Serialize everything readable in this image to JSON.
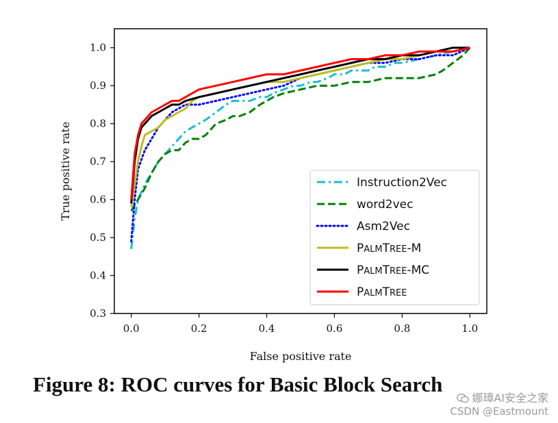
{
  "chart_data": {
    "type": "line",
    "title": "",
    "xlabel": "False positive rate",
    "ylabel": "True positive rate",
    "xlim": [
      -0.05,
      1.05
    ],
    "ylim": [
      0.3,
      1.05
    ],
    "xticks": [
      0.0,
      0.2,
      0.4,
      0.6,
      0.8,
      1.0
    ],
    "xtick_labels": [
      "0.0",
      "0.2",
      "0.4",
      "0.6",
      "0.8",
      "1.0"
    ],
    "yticks": [
      0.3,
      0.4,
      0.5,
      0.6,
      0.7,
      0.8,
      0.9,
      1.0
    ],
    "ytick_labels": [
      "0.3",
      "0.4",
      "0.5",
      "0.6",
      "0.7",
      "0.8",
      "0.9",
      "1.0"
    ],
    "grid": false,
    "legend_position": "bottom-right",
    "series": [
      {
        "name": "Instruction2Vec",
        "color": "#17becf",
        "style": "dashdot",
        "x": [
          0.0,
          0.01,
          0.02,
          0.04,
          0.06,
          0.08,
          0.1,
          0.12,
          0.14,
          0.16,
          0.18,
          0.2,
          0.22,
          0.25,
          0.28,
          0.3,
          0.32,
          0.35,
          0.38,
          0.4,
          0.42,
          0.45,
          0.48,
          0.5,
          0.53,
          0.55,
          0.58,
          0.6,
          0.63,
          0.65,
          0.68,
          0.7,
          0.72,
          0.75,
          0.78,
          0.8,
          0.85,
          0.9,
          0.95,
          1.0
        ],
        "y": [
          0.47,
          0.55,
          0.6,
          0.64,
          0.67,
          0.7,
          0.72,
          0.74,
          0.76,
          0.78,
          0.79,
          0.8,
          0.81,
          0.83,
          0.85,
          0.86,
          0.86,
          0.86,
          0.87,
          0.87,
          0.88,
          0.89,
          0.9,
          0.9,
          0.91,
          0.91,
          0.92,
          0.93,
          0.93,
          0.94,
          0.94,
          0.94,
          0.95,
          0.95,
          0.96,
          0.96,
          0.97,
          0.98,
          0.99,
          1.0
        ]
      },
      {
        "name": "word2vec",
        "color": "#008000",
        "style": "dashed",
        "x": [
          0.0,
          0.02,
          0.04,
          0.06,
          0.08,
          0.1,
          0.12,
          0.14,
          0.16,
          0.18,
          0.2,
          0.22,
          0.25,
          0.28,
          0.3,
          0.32,
          0.35,
          0.38,
          0.4,
          0.42,
          0.45,
          0.5,
          0.55,
          0.6,
          0.65,
          0.7,
          0.75,
          0.8,
          0.85,
          0.9,
          0.92,
          0.95,
          0.98,
          1.0
        ],
        "y": [
          0.57,
          0.6,
          0.63,
          0.67,
          0.7,
          0.72,
          0.73,
          0.73,
          0.75,
          0.76,
          0.76,
          0.77,
          0.8,
          0.81,
          0.82,
          0.82,
          0.83,
          0.85,
          0.86,
          0.87,
          0.88,
          0.89,
          0.9,
          0.9,
          0.91,
          0.91,
          0.92,
          0.92,
          0.92,
          0.93,
          0.94,
          0.96,
          0.98,
          1.0
        ]
      },
      {
        "name": "Asm2Vec",
        "color": "#0000ff",
        "style": "dotted",
        "x": [
          0.0,
          0.01,
          0.02,
          0.04,
          0.06,
          0.08,
          0.1,
          0.12,
          0.14,
          0.16,
          0.18,
          0.2,
          0.25,
          0.3,
          0.35,
          0.4,
          0.45,
          0.5,
          0.55,
          0.6,
          0.65,
          0.7,
          0.75,
          0.8,
          0.85,
          0.9,
          0.95,
          1.0
        ],
        "y": [
          0.49,
          0.6,
          0.68,
          0.73,
          0.76,
          0.79,
          0.81,
          0.83,
          0.84,
          0.85,
          0.85,
          0.85,
          0.86,
          0.87,
          0.88,
          0.89,
          0.9,
          0.92,
          0.93,
          0.94,
          0.95,
          0.96,
          0.96,
          0.97,
          0.97,
          0.98,
          0.98,
          1.0
        ]
      },
      {
        "name": "PalmTree-M",
        "color": "#bcbd22",
        "style": "solid",
        "x": [
          0.0,
          0.01,
          0.02,
          0.03,
          0.04,
          0.06,
          0.08,
          0.1,
          0.12,
          0.14,
          0.16,
          0.18,
          0.2,
          0.25,
          0.3,
          0.35,
          0.4,
          0.45,
          0.5,
          0.55,
          0.6,
          0.65,
          0.7,
          0.75,
          0.8,
          0.85,
          0.9,
          0.95,
          1.0
        ],
        "y": [
          0.58,
          0.64,
          0.7,
          0.74,
          0.77,
          0.78,
          0.79,
          0.81,
          0.82,
          0.83,
          0.84,
          0.86,
          0.87,
          0.88,
          0.89,
          0.9,
          0.91,
          0.91,
          0.92,
          0.93,
          0.94,
          0.95,
          0.96,
          0.97,
          0.97,
          0.98,
          0.99,
          0.99,
          1.0
        ]
      },
      {
        "name": "PalmTree-MC",
        "color": "#000000",
        "style": "solid",
        "x": [
          0.0,
          0.01,
          0.02,
          0.03,
          0.04,
          0.06,
          0.08,
          0.1,
          0.12,
          0.14,
          0.16,
          0.2,
          0.25,
          0.3,
          0.35,
          0.4,
          0.45,
          0.5,
          0.55,
          0.6,
          0.65,
          0.7,
          0.75,
          0.8,
          0.85,
          0.9,
          0.95,
          1.0
        ],
        "y": [
          0.59,
          0.7,
          0.76,
          0.79,
          0.8,
          0.82,
          0.83,
          0.84,
          0.85,
          0.85,
          0.86,
          0.87,
          0.88,
          0.89,
          0.9,
          0.91,
          0.92,
          0.93,
          0.94,
          0.95,
          0.96,
          0.97,
          0.97,
          0.98,
          0.98,
          0.99,
          1.0,
          1.0
        ]
      },
      {
        "name": "PalmTree",
        "color": "#ff0000",
        "style": "solid",
        "x": [
          0.0,
          0.01,
          0.02,
          0.03,
          0.04,
          0.06,
          0.08,
          0.1,
          0.12,
          0.14,
          0.16,
          0.18,
          0.2,
          0.25,
          0.3,
          0.35,
          0.4,
          0.45,
          0.5,
          0.55,
          0.6,
          0.65,
          0.7,
          0.75,
          0.8,
          0.85,
          0.9,
          0.95,
          1.0
        ],
        "y": [
          0.6,
          0.72,
          0.77,
          0.8,
          0.81,
          0.83,
          0.84,
          0.85,
          0.86,
          0.86,
          0.87,
          0.88,
          0.89,
          0.9,
          0.91,
          0.92,
          0.93,
          0.93,
          0.94,
          0.95,
          0.96,
          0.97,
          0.97,
          0.98,
          0.98,
          0.99,
          0.99,
          0.99,
          1.0
        ]
      }
    ]
  },
  "caption": "Figure 8: ROC curves for Basic Block Search",
  "watermark": {
    "line1": "娜璋AI安全之家",
    "line2": "CSDN @Eastmount",
    "icon": "wechat-icon"
  }
}
